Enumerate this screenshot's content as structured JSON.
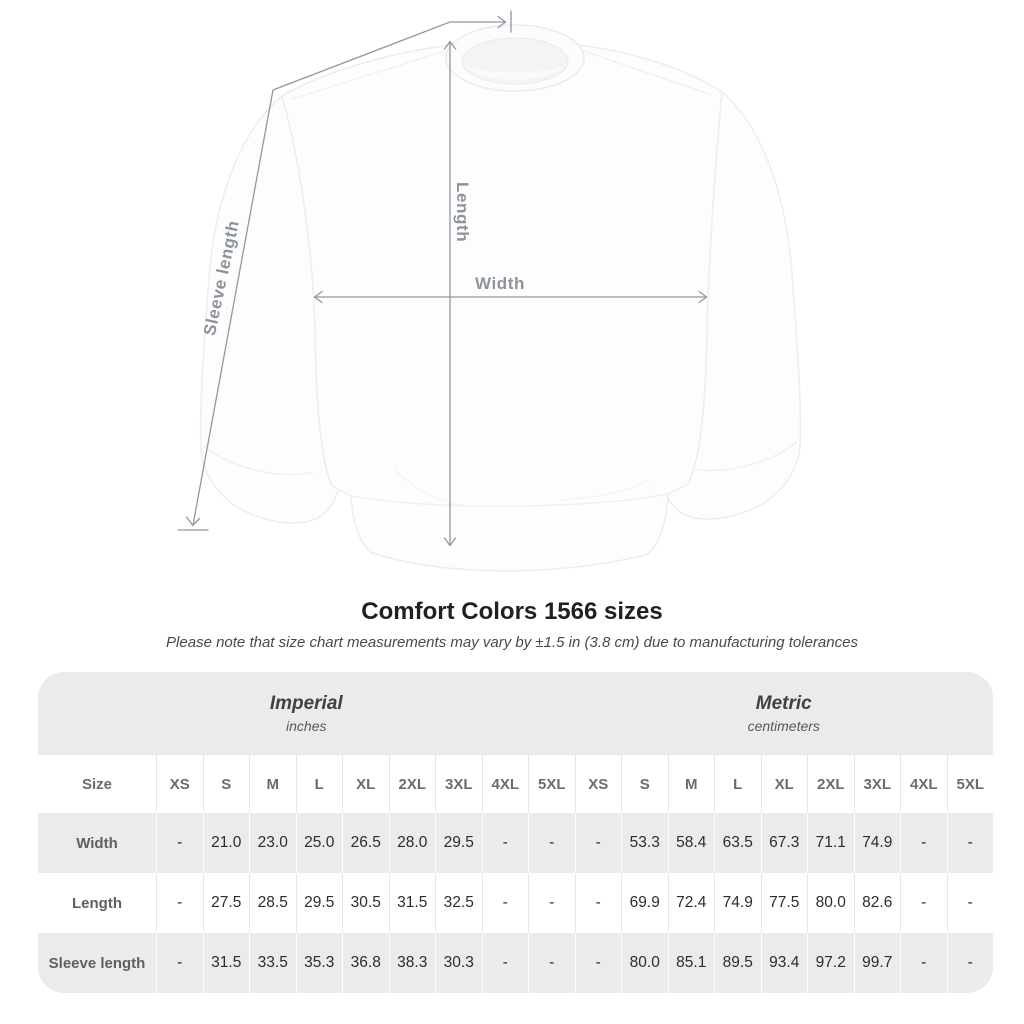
{
  "diagram": {
    "labels": {
      "length": "Length",
      "width": "Width",
      "sleeve": "Sleeve length"
    },
    "colors": {
      "dimension_line": "#9298a0",
      "dimension_text": "#8d939b",
      "garment_fill": "#fdfdfe",
      "garment_outline": "#ecedef"
    }
  },
  "title": "Comfort Colors 1566 sizes",
  "subtitle": "Please note that size chart measurements may vary by ±1.5 in (3.8 cm) due to manufacturing tolerances",
  "table": {
    "stripe_color": "#ebebeb",
    "size_header": "Size",
    "groups": [
      {
        "label": "Imperial",
        "sublabel": "inches"
      },
      {
        "label": "Metric",
        "sublabel": "centimeters"
      }
    ],
    "sizes": [
      "XS",
      "S",
      "M",
      "L",
      "XL",
      "2XL",
      "3XL",
      "4XL",
      "5XL"
    ],
    "rows": [
      {
        "label": "Width",
        "imperial": [
          "-",
          "21.0",
          "23.0",
          "25.0",
          "26.5",
          "28.0",
          "29.5",
          "-",
          "-"
        ],
        "metric": [
          "-",
          "53.3",
          "58.4",
          "63.5",
          "67.3",
          "71.1",
          "74.9",
          "-",
          "-"
        ]
      },
      {
        "label": "Length",
        "imperial": [
          "-",
          "27.5",
          "28.5",
          "29.5",
          "30.5",
          "31.5",
          "32.5",
          "-",
          "-"
        ],
        "metric": [
          "-",
          "69.9",
          "72.4",
          "74.9",
          "77.5",
          "80.0",
          "82.6",
          "-",
          "-"
        ]
      },
      {
        "label": "Sleeve length",
        "imperial": [
          "-",
          "31.5",
          "33.5",
          "35.3",
          "36.8",
          "38.3",
          "30.3",
          "-",
          "-"
        ],
        "metric": [
          "-",
          "80.0",
          "85.1",
          "89.5",
          "93.4",
          "97.2",
          "99.7",
          "-",
          "-"
        ]
      }
    ]
  }
}
